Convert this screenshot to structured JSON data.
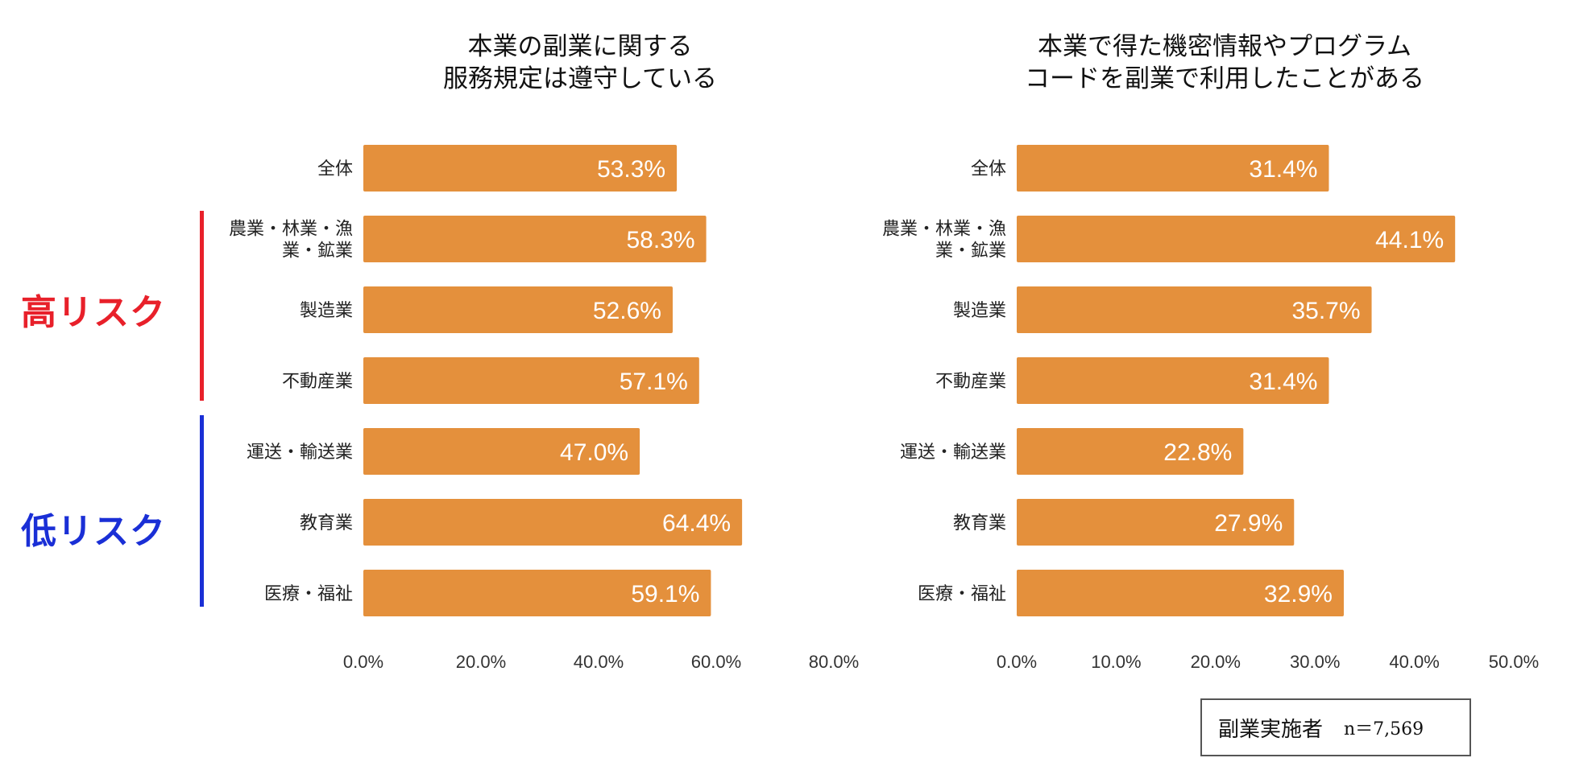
{
  "risk_groups": {
    "high_label": "高リスク",
    "low_label": "低リスク",
    "high_color": "#e8202a",
    "low_color": "#1a2fd6"
  },
  "note": {
    "label": "副業実施者",
    "n": "n＝7,569"
  },
  "bar_color": "#e4903c",
  "chart_data": [
    {
      "type": "bar",
      "orientation": "horizontal",
      "title": "本業の副業に関する\n服務規定は遵守している",
      "categories": [
        "全体",
        "農業・林業・漁\n業・鉱業",
        "製造業",
        "不動産業",
        "運送・輸送業",
        "教育業",
        "医療・福祉"
      ],
      "values": [
        53.3,
        58.3,
        52.6,
        57.1,
        47.0,
        64.4,
        59.1
      ],
      "value_labels": [
        "53.3%",
        "58.3%",
        "52.6%",
        "57.1%",
        "47.0%",
        "64.4%",
        "59.1%"
      ],
      "xlim": [
        0,
        80
      ],
      "x_ticks": [
        0,
        20,
        40,
        60,
        80
      ],
      "x_tick_labels": [
        "0.0%",
        "20.0%",
        "40.0%",
        "60.0%",
        "80.0%"
      ],
      "xlabel": "",
      "ylabel": "",
      "grid": false
    },
    {
      "type": "bar",
      "orientation": "horizontal",
      "title": "本業で得た機密情報やプログラム\nコードを副業で利用したことがある",
      "categories": [
        "全体",
        "農業・林業・漁\n業・鉱業",
        "製造業",
        "不動産業",
        "運送・輸送業",
        "教育業",
        "医療・福祉"
      ],
      "values": [
        31.4,
        44.1,
        35.7,
        31.4,
        22.8,
        27.9,
        32.9
      ],
      "value_labels": [
        "31.4%",
        "44.1%",
        "35.7%",
        "31.4%",
        "22.8%",
        "27.9%",
        "32.9%"
      ],
      "xlim": [
        0,
        50
      ],
      "x_ticks": [
        0,
        10,
        20,
        30,
        40,
        50
      ],
      "x_tick_labels": [
        "0.0%",
        "10.0%",
        "20.0%",
        "30.0%",
        "40.0%",
        "50.0%"
      ],
      "xlabel": "",
      "ylabel": "",
      "grid": false
    }
  ]
}
